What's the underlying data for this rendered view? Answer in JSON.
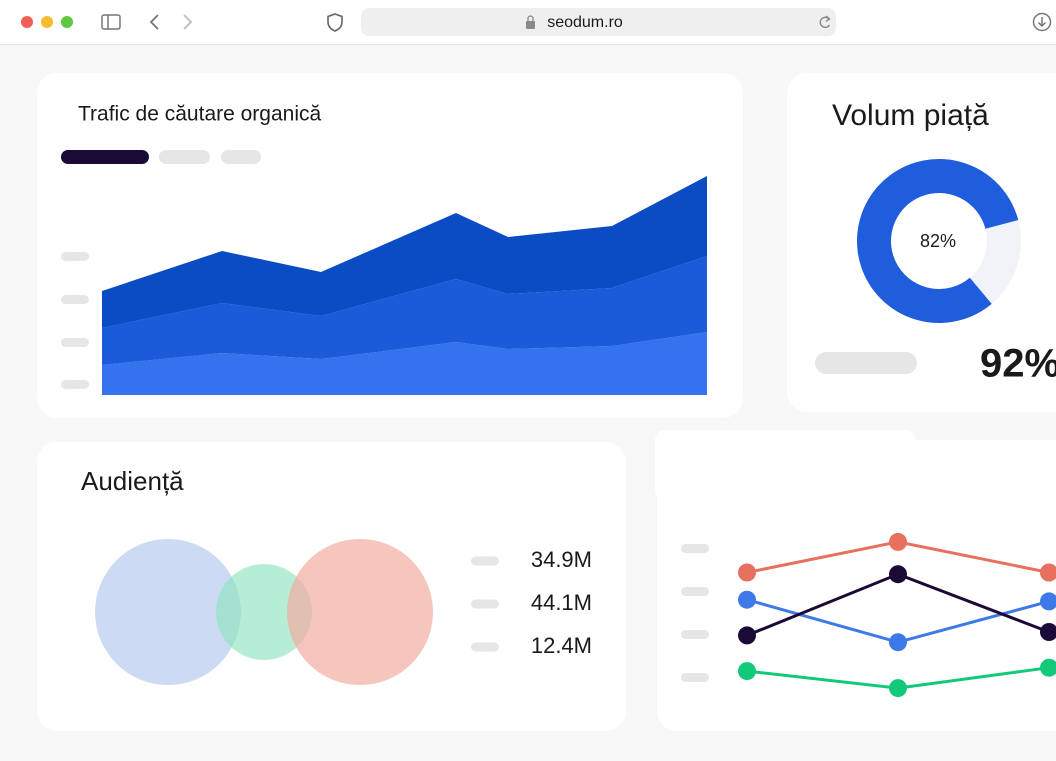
{
  "browser": {
    "url": "seodum.ro"
  },
  "traffic": {
    "type": "area",
    "title": "Trafic de căutare organică",
    "stacked": true,
    "x": [
      0,
      120,
      219,
      354,
      406,
      510,
      605
    ],
    "xlim": [
      0,
      605
    ],
    "ylim": [
      0,
      220
    ],
    "series": [
      {
        "color": "#3572ee",
        "values": [
          30,
          42,
          36,
          53,
          46,
          49,
          63
        ]
      },
      {
        "color": "#1b5ad8",
        "values": [
          37,
          50,
          43,
          63,
          55,
          58,
          76
        ]
      },
      {
        "color": "#0a4cc4",
        "values": [
          37,
          52,
          44,
          66,
          57,
          62,
          80
        ]
      }
    ]
  },
  "market": {
    "type": "donut",
    "title": "Volum piață",
    "value": 82,
    "value_label": "82%",
    "color": "#1f5ddc",
    "track_color": "#f1f3f8",
    "stat": "92%"
  },
  "audience": {
    "title": "Audiență",
    "stats": [
      "34.9M",
      "44.1M",
      "12.4M"
    ]
  },
  "trends": {
    "type": "line",
    "categories": [
      null,
      null,
      null
    ],
    "ylim": [
      0,
      100
    ],
    "series": [
      {
        "color": "#e8705f",
        "values": [
          75,
          93,
          75
        ]
      },
      {
        "color": "#3d7ae8",
        "values": [
          59,
          34,
          58
        ]
      },
      {
        "color": "#1c0a36",
        "values": [
          38,
          74,
          40
        ]
      },
      {
        "color": "#12c97a",
        "values": [
          17,
          7,
          19
        ]
      }
    ]
  }
}
